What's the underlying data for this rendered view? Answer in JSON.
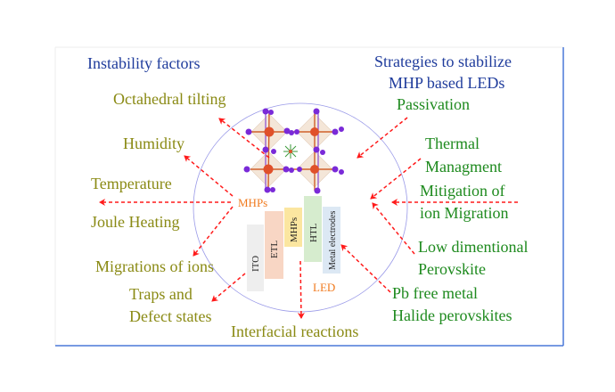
{
  "left_title": "Instability factors",
  "right_title": [
    "Strategies to stabilize",
    "MHP based LEDs"
  ],
  "instability_factors": {
    "octahedral": "Octahedral tilting",
    "humidity": "Humidity",
    "temperature": "Temperature",
    "joule": "Joule Heating",
    "migration": "Migrations of ions",
    "traps": [
      "Traps and",
      "Defect states"
    ],
    "interfacial": "Interfacial reactions"
  },
  "strategies": {
    "passivation": "Passivation",
    "thermal": [
      "Thermal",
      "Managment"
    ],
    "mitigation": [
      "Mitigation of",
      "ion Migration"
    ],
    "low_dim": [
      "Low dimentional",
      "Perovskite"
    ],
    "pb_free": [
      "Pb free metal",
      "Halide perovskites"
    ]
  },
  "center": {
    "mhps_label": "MHPs",
    "led_label": "LED",
    "layers": [
      "ITO",
      "ETL",
      "MHPs",
      "HTL",
      "Metal electrodes"
    ]
  },
  "colors": {
    "title": "#1f3c9c",
    "instability": "#8a8a14",
    "strategy": "#1e8a1e",
    "arrow": "#ff1a1a",
    "center_label": "#f07a1e",
    "frame": "#4a78d8"
  }
}
